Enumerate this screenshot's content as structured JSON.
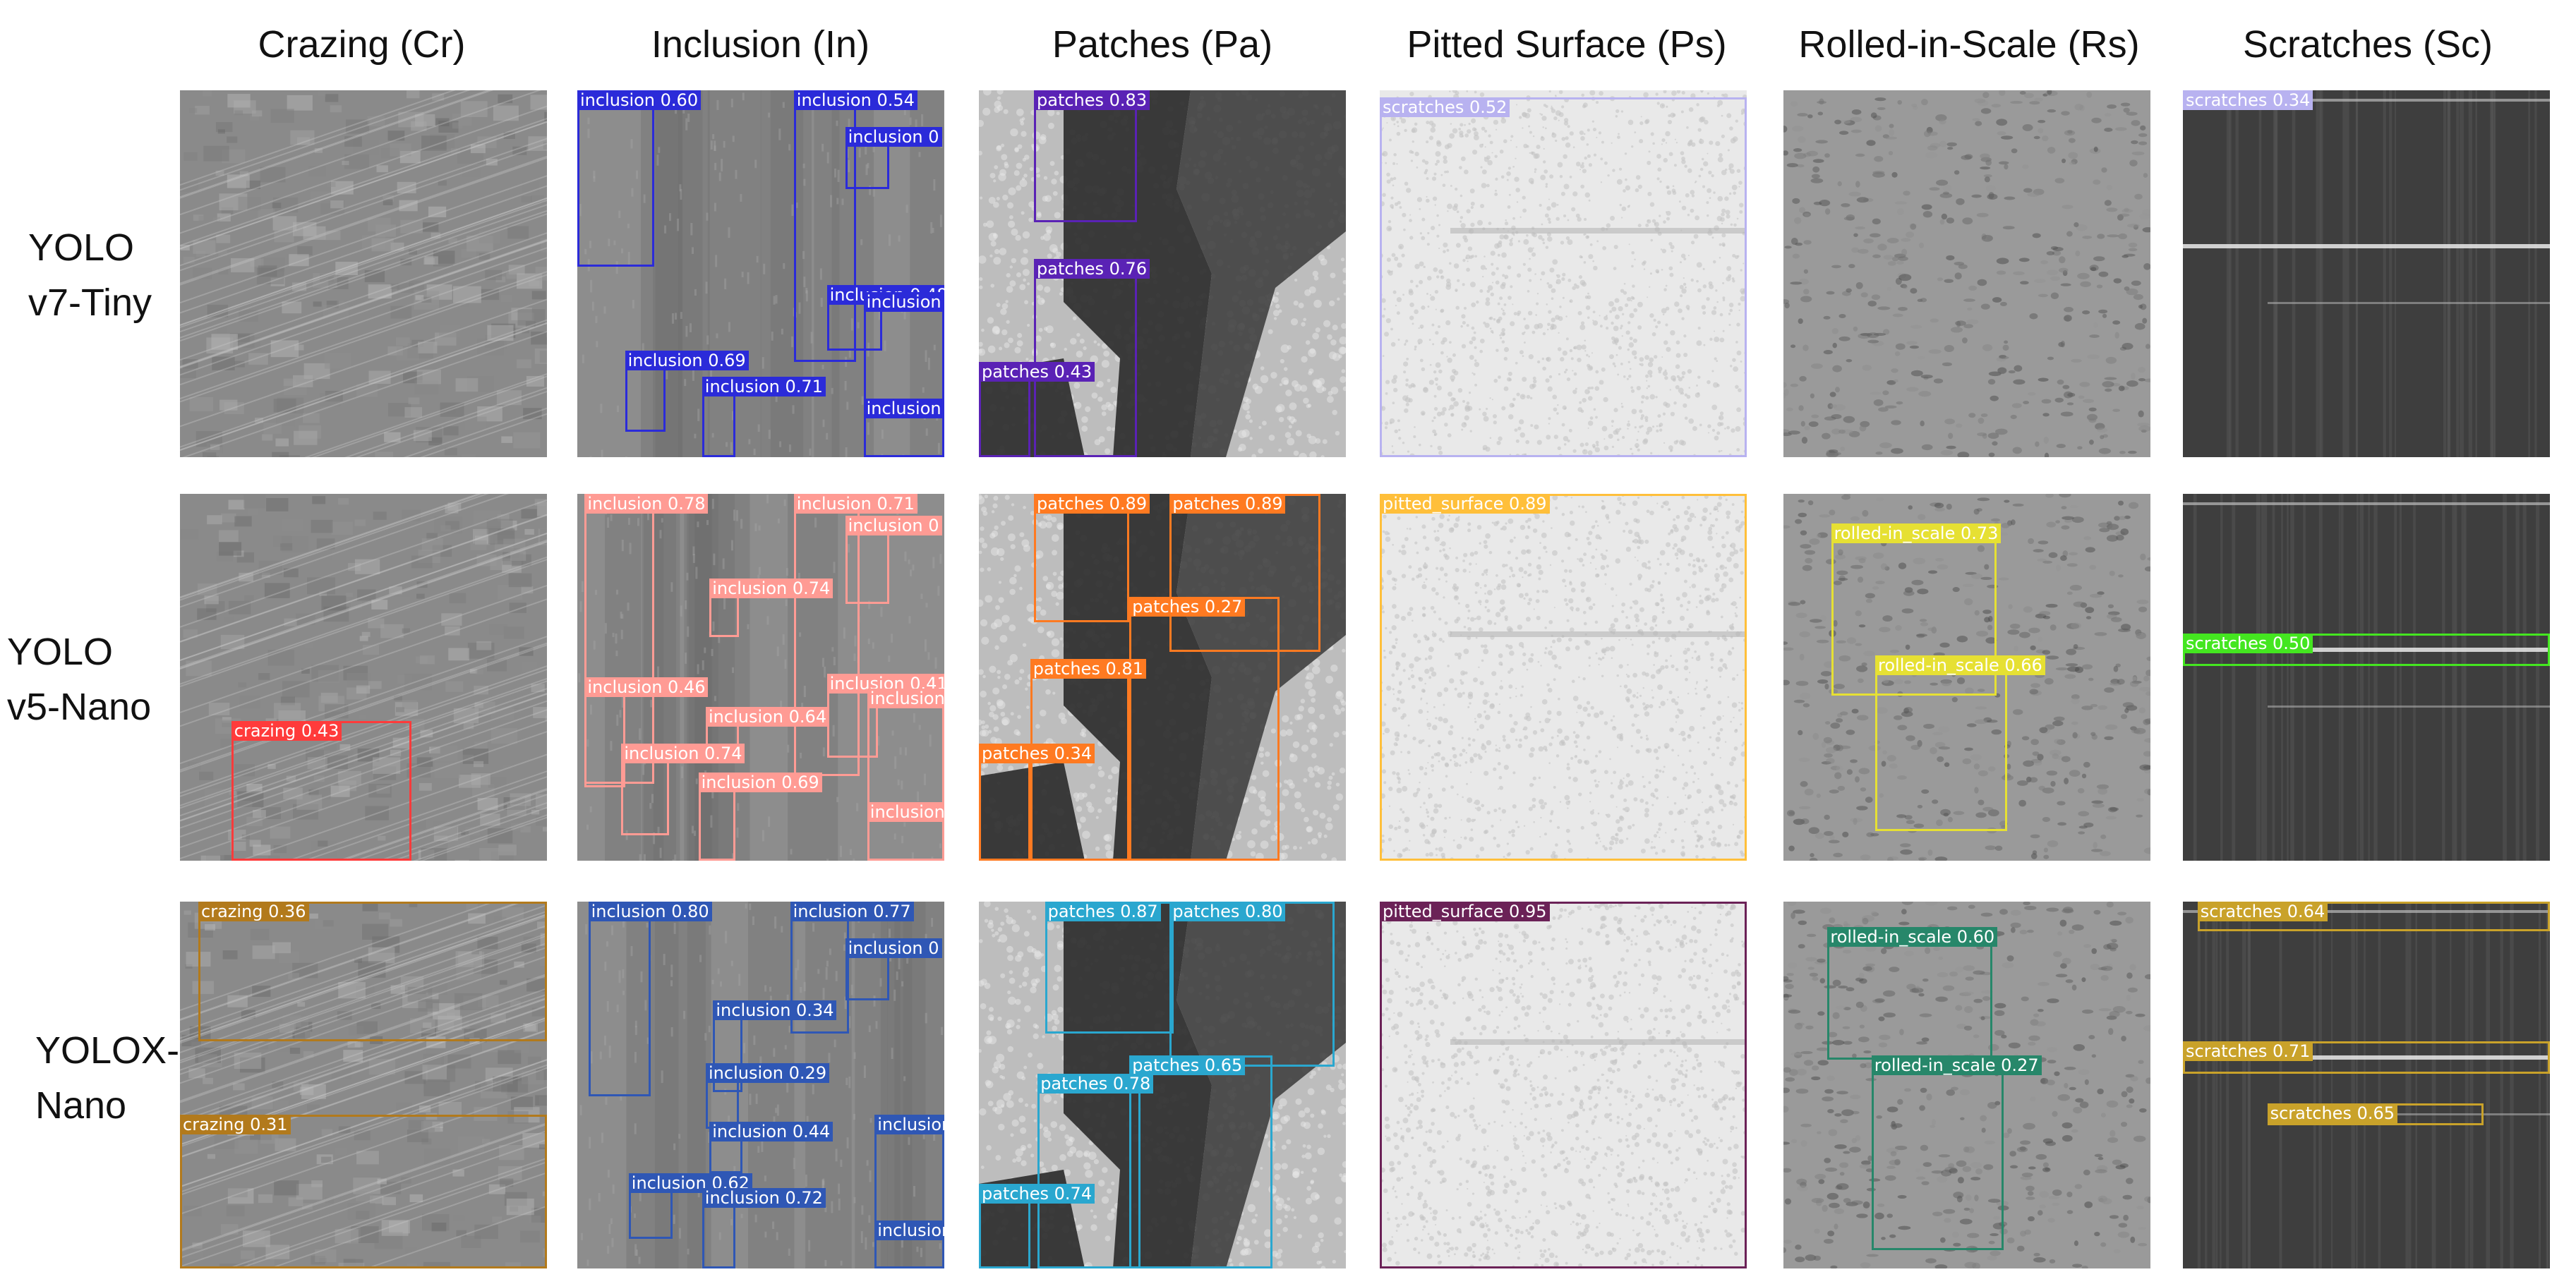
{
  "columns": [
    {
      "id": "cr",
      "label": "Crazing (Cr)"
    },
    {
      "id": "in",
      "label": "Inclusion (In)"
    },
    {
      "id": "pa",
      "label": "Patches (Pa)"
    },
    {
      "id": "ps",
      "label": "Pitted Surface (Ps)"
    },
    {
      "id": "rs",
      "label": "Rolled-in-Scale (Rs)"
    },
    {
      "id": "sc",
      "label": "Scratches (Sc)"
    }
  ],
  "rows": [
    {
      "id": "v7",
      "label_lines": [
        "YOLO",
        "v7-Tiny"
      ]
    },
    {
      "id": "v5",
      "label_lines": [
        "YOLO",
        "v5-Nano"
      ]
    },
    {
      "id": "x",
      "label_lines": [
        "YOLOX-",
        "Nano"
      ]
    }
  ],
  "model_colors": {
    "v7": {
      "inclusion": "#2b2bd9",
      "patches": "#5a22b5",
      "scratches": "#b8b2f0"
    },
    "v5": {
      "crazing": "#ff3b3b",
      "inclusion": "#ff9b94",
      "patches": "#ff7a21",
      "pitted_surface": "#ffbf3a",
      "rolled_in_scale": "#e6e033",
      "scratches": "#44e620"
    },
    "x": {
      "crazing": "#b27a1c",
      "inclusion": "#2f57b5",
      "patches": "#2aa7cf",
      "pitted_surface": "#6b2257",
      "rolled_in_scale": "#27876a",
      "scratches": "#c9a22a"
    }
  },
  "detections": {
    "v7": {
      "cr": [],
      "in": [
        {
          "text": "inclusion 0.60"
        },
        {
          "text": "inclusion 0.54"
        },
        {
          "text": "inclusion 0"
        },
        {
          "text": "inclusion 0.48"
        },
        {
          "text": "inclusion"
        },
        {
          "text": "inclusion 0.69"
        },
        {
          "text": "inclusion 0.71"
        },
        {
          "text": "inclusion"
        }
      ],
      "pa": [
        {
          "text": "patches 0.83"
        },
        {
          "text": "patches 0.76"
        },
        {
          "text": "patches 0.43"
        }
      ],
      "ps": [
        {
          "text": "scratches 0.52"
        }
      ],
      "rs": [],
      "sc": [
        {
          "text": "scratches 0.34"
        }
      ]
    },
    "v5": {
      "cr": [
        {
          "text": "crazing 0.43"
        }
      ],
      "in": [
        {
          "text": "inclusion 0.78"
        },
        {
          "text": "inclusion 0.71"
        },
        {
          "text": "inclusion 0"
        },
        {
          "text": "inclusion 0.74"
        },
        {
          "text": "inclusion 0.46"
        },
        {
          "text": "inclusion 0.41"
        },
        {
          "text": "inclusion 0.64"
        },
        {
          "text": "inclusion"
        },
        {
          "text": "inclusion 0.74"
        },
        {
          "text": "inclusion 0.69"
        },
        {
          "text": "inclusion"
        }
      ],
      "pa": [
        {
          "text": "patches 0.89"
        },
        {
          "text": "patches 0.89"
        },
        {
          "text": "patches 0.27"
        },
        {
          "text": "patches 0.81"
        },
        {
          "text": "patches 0.34"
        }
      ],
      "ps": [
        {
          "text": "pitted_surface 0.89"
        }
      ],
      "rs": [
        {
          "text": "rolled-in_scale 0.73"
        },
        {
          "text": "rolled-in_scale 0.66"
        }
      ],
      "sc": [
        {
          "text": "scratches 0.50"
        }
      ]
    },
    "x": {
      "cr": [
        {
          "text": "crazing 0.36"
        },
        {
          "text": "crazing 0.31"
        }
      ],
      "in": [
        {
          "text": "inclusion 0.80"
        },
        {
          "text": "inclusion 0.77"
        },
        {
          "text": "inclusion 0"
        },
        {
          "text": "inclusion 0.34"
        },
        {
          "text": "inclusion 0.29"
        },
        {
          "text": "inclusion 0.44"
        },
        {
          "text": "inclusion"
        },
        {
          "text": "inclusion 0.62"
        },
        {
          "text": "inclusion 0.72"
        },
        {
          "text": "inclusion"
        }
      ],
      "pa": [
        {
          "text": "patches 0.87"
        },
        {
          "text": "patches 0.80"
        },
        {
          "text": "patches 0.65"
        },
        {
          "text": "patches 0.78"
        },
        {
          "text": "patches 0.74"
        }
      ],
      "ps": [
        {
          "text": "pitted_surface 0.95"
        }
      ],
      "rs": [
        {
          "text": "rolled-in_scale 0.60"
        },
        {
          "text": "rolled-in_scale 0.27"
        }
      ],
      "sc": [
        {
          "text": "scratches 0.64"
        },
        {
          "text": "scratches 0.71"
        },
        {
          "text": "scratches 0.65"
        }
      ]
    }
  }
}
